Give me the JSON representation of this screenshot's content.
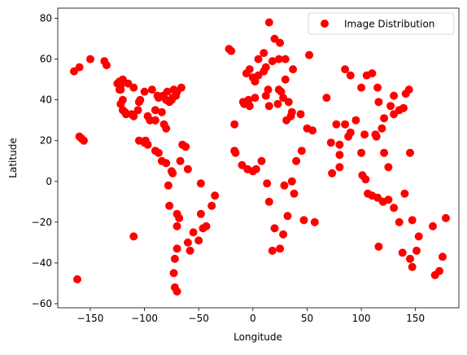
{
  "chart_data": {
    "type": "scatter",
    "title": "",
    "xlabel": "Longitude",
    "ylabel": "Latitude",
    "xlim": [
      -180,
      190
    ],
    "ylim": [
      -62,
      85
    ],
    "xticks": [
      -150,
      -100,
      -50,
      0,
      50,
      100,
      150
    ],
    "yticks": [
      -60,
      -40,
      -20,
      0,
      20,
      40,
      60,
      80
    ],
    "grid": false,
    "legend": {
      "position": "top-right",
      "entries": [
        {
          "label": "Image Distribution",
          "color": "#ff0000",
          "marker": "circle"
        }
      ]
    },
    "series": [
      {
        "name": "Image Distribution",
        "color": "#ff0000",
        "points": [
          [
            -165,
            54
          ],
          [
            -160,
            56
          ],
          [
            -150,
            60
          ],
          [
            -160,
            22
          ],
          [
            -158,
            21
          ],
          [
            -156,
            20
          ],
          [
            -162,
            -48
          ],
          [
            -110,
            -27
          ],
          [
            -137,
            59
          ],
          [
            -135,
            57
          ],
          [
            -123,
            49
          ],
          [
            -122,
            47
          ],
          [
            -122,
            45
          ],
          [
            -120,
            40
          ],
          [
            -122,
            38
          ],
          [
            -120,
            35
          ],
          [
            -118,
            34
          ],
          [
            -117,
            33
          ],
          [
            -112,
            33
          ],
          [
            -110,
            32
          ],
          [
            -106,
            35
          ],
          [
            -104,
            40
          ],
          [
            -105,
            39
          ],
          [
            -97,
            32
          ],
          [
            -95,
            30
          ],
          [
            -90,
            30
          ],
          [
            -88,
            42
          ],
          [
            -87,
            41
          ],
          [
            -83,
            42
          ],
          [
            -80,
            40
          ],
          [
            -77,
            39
          ],
          [
            -75,
            40
          ],
          [
            -74,
            41
          ],
          [
            -71,
            42
          ],
          [
            -70,
            44
          ],
          [
            -80,
            26
          ],
          [
            -82,
            28
          ],
          [
            -84,
            34
          ],
          [
            -90,
            35
          ],
          [
            -93,
            45
          ],
          [
            -100,
            44
          ],
          [
            -110,
            46
          ],
          [
            -115,
            48
          ],
          [
            -120,
            50
          ],
          [
            -123,
            45
          ],
          [
            -125,
            48
          ],
          [
            -105,
            20
          ],
          [
            -100,
            19
          ],
          [
            -99,
            20
          ],
          [
            -97,
            18
          ],
          [
            -90,
            15
          ],
          [
            -87,
            14
          ],
          [
            -84,
            10
          ],
          [
            -80,
            9
          ],
          [
            -75,
            5
          ],
          [
            -74,
            4
          ],
          [
            -78,
            -2
          ],
          [
            -77,
            -12
          ],
          [
            -70,
            -16
          ],
          [
            -68,
            -18
          ],
          [
            -70,
            -22
          ],
          [
            -70,
            -33
          ],
          [
            -72,
            -38
          ],
          [
            -73,
            -45
          ],
          [
            -72,
            -52
          ],
          [
            -70,
            -54
          ],
          [
            -58,
            -34
          ],
          [
            -60,
            -30
          ],
          [
            -55,
            -25
          ],
          [
            -48,
            -16
          ],
          [
            -43,
            -22
          ],
          [
            -46,
            -23
          ],
          [
            -50,
            -29
          ],
          [
            -38,
            -12
          ],
          [
            -35,
            -7
          ],
          [
            -48,
            -1
          ],
          [
            -60,
            6
          ],
          [
            -67,
            10
          ],
          [
            -65,
            18
          ],
          [
            -62,
            17
          ],
          [
            -66,
            46
          ],
          [
            -73,
            45
          ],
          [
            -79,
            44
          ],
          [
            -20,
            64
          ],
          [
            -22,
            65
          ],
          [
            -17,
            28
          ],
          [
            -16,
            14
          ],
          [
            -10,
            8
          ],
          [
            -5,
            6
          ],
          [
            0,
            5
          ],
          [
            -8,
            38
          ],
          [
            -9,
            39
          ],
          [
            -4,
            40
          ],
          [
            -3,
            37
          ],
          [
            2,
            41
          ],
          [
            2,
            49
          ],
          [
            0,
            51
          ],
          [
            -3,
            55
          ],
          [
            -6,
            53
          ],
          [
            5,
            52
          ],
          [
            10,
            54
          ],
          [
            12,
            56
          ],
          [
            18,
            59
          ],
          [
            24,
            60
          ],
          [
            30,
            60
          ],
          [
            37,
            55
          ],
          [
            30,
            50
          ],
          [
            24,
            45
          ],
          [
            26,
            44
          ],
          [
            23,
            38
          ],
          [
            28,
            41
          ],
          [
            33,
            39
          ],
          [
            35,
            32
          ],
          [
            31,
            30
          ],
          [
            36,
            34
          ],
          [
            44,
            33
          ],
          [
            50,
            26
          ],
          [
            55,
            25
          ],
          [
            45,
            15
          ],
          [
            40,
            10
          ],
          [
            36,
            0
          ],
          [
            38,
            -6
          ],
          [
            29,
            -2
          ],
          [
            32,
            -17
          ],
          [
            28,
            -26
          ],
          [
            18,
            -34
          ],
          [
            25,
            -33
          ],
          [
            20,
            -23
          ],
          [
            15,
            -10
          ],
          [
            13,
            -1
          ],
          [
            8,
            10
          ],
          [
            3,
            6
          ],
          [
            -17,
            15
          ],
          [
            47,
            -19
          ],
          [
            57,
            -20
          ],
          [
            52,
            62
          ],
          [
            15,
            78
          ],
          [
            20,
            70
          ],
          [
            25,
            68
          ],
          [
            10,
            63
          ],
          [
            5,
            60
          ],
          [
            14,
            45
          ],
          [
            12,
            42
          ],
          [
            15,
            37
          ],
          [
            72,
            19
          ],
          [
            77,
            28
          ],
          [
            80,
            13
          ],
          [
            80,
            7
          ],
          [
            73,
            4
          ],
          [
            68,
            41
          ],
          [
            85,
            28
          ],
          [
            88,
            22
          ],
          [
            90,
            24
          ],
          [
            100,
            14
          ],
          [
            101,
            3
          ],
          [
            104,
            1
          ],
          [
            106,
            -6
          ],
          [
            110,
            -7
          ],
          [
            115,
            -8
          ],
          [
            120,
            -10
          ],
          [
            125,
            -9
          ],
          [
            121,
            14
          ],
          [
            114,
            22
          ],
          [
            116,
            39
          ],
          [
            121,
            31
          ],
          [
            113,
            23
          ],
          [
            127,
            37
          ],
          [
            130,
            33
          ],
          [
            135,
            35
          ],
          [
            139,
            36
          ],
          [
            141,
            43
          ],
          [
            144,
            45
          ],
          [
            130,
            42
          ],
          [
            119,
            26
          ],
          [
            103,
            23
          ],
          [
            100,
            46
          ],
          [
            90,
            52
          ],
          [
            105,
            52
          ],
          [
            85,
            55
          ],
          [
            110,
            53
          ],
          [
            145,
            -38
          ],
          [
            151,
            -34
          ],
          [
            153,
            -27
          ],
          [
            147,
            -19
          ],
          [
            116,
            -32
          ],
          [
            130,
            -13
          ],
          [
            135,
            -20
          ],
          [
            138,
            -35
          ],
          [
            147,
            -42
          ],
          [
            175,
            -37
          ],
          [
            172,
            -44
          ],
          [
            168,
            -46
          ],
          [
            178,
            -18
          ],
          [
            166,
            -22
          ],
          [
            145,
            14
          ],
          [
            125,
            7
          ],
          [
            140,
            -6
          ],
          [
            115,
            46
          ],
          [
            95,
            30
          ],
          [
            80,
            18
          ]
        ]
      }
    ]
  }
}
